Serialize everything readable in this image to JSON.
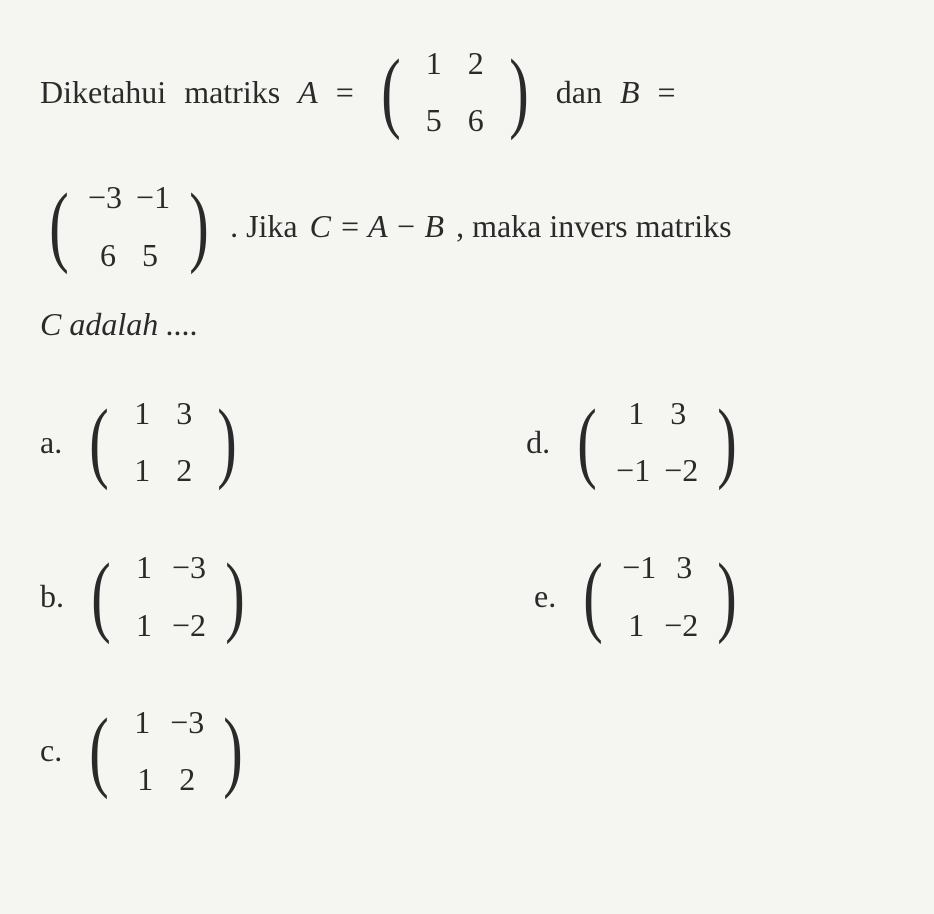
{
  "question": {
    "word1": "Diketahui",
    "word2": "matriks",
    "varA": "A",
    "eq1": "=",
    "matA": {
      "r1c1": "1",
      "r1c2": "2",
      "r2c1": "5",
      "r2c2": "6"
    },
    "word3": "dan",
    "varB": "B",
    "eq2": "=",
    "matB": {
      "r1c1": "−3",
      "r1c2": "−1",
      "r2c1": "6",
      "r2c2": "5"
    },
    "word4": ". Jika",
    "eqC": "C = A − B",
    "word5": ", maka invers matriks",
    "line3": "C adalah ...."
  },
  "options": {
    "a": {
      "label": "a.",
      "mat": {
        "r1c1": "1",
        "r1c2": "3",
        "r2c1": "1",
        "r2c2": "2"
      }
    },
    "b": {
      "label": "b.",
      "mat": {
        "r1c1": "1",
        "r1c2": "−3",
        "r2c1": "1",
        "r2c2": "−2"
      }
    },
    "c": {
      "label": "c.",
      "mat": {
        "r1c1": "1",
        "r1c2": "−3",
        "r2c1": "1",
        "r2c2": "2"
      }
    },
    "d": {
      "label": "d.",
      "mat": {
        "r1c1": "1",
        "r1c2": "3",
        "r2c1": "−1",
        "r2c2": "−2"
      }
    },
    "e": {
      "label": "e.",
      "mat": {
        "r1c1": "−1",
        "r1c2": "3",
        "r2c1": "1",
        "r2c2": "−2"
      }
    }
  },
  "style": {
    "background_color": "#f5f5f2",
    "text_color": "#2a2a2a",
    "font_family": "Times New Roman",
    "font_size_pt": 24,
    "matrix_paren_size": 90
  }
}
